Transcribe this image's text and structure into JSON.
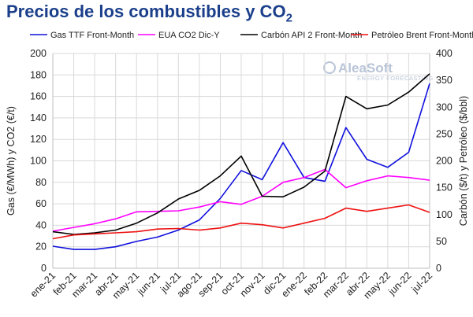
{
  "header": {
    "title_main": "Precios de los combustibles y CO",
    "title_sub": "2"
  },
  "logo": {
    "name": "AleaSoft",
    "tagline": "ENERGY FORECASTING"
  },
  "chart_data": {
    "type": "line",
    "title": "Precios de los combustibles y CO2",
    "categories": [
      "ene-21",
      "feb-21",
      "mar-21",
      "abr-21",
      "may-21",
      "jun-21",
      "jul-21",
      "ago-21",
      "sep-21",
      "oct-21",
      "nov-21",
      "dic-21",
      "ene-22",
      "feb-22",
      "mar-22",
      "abr-22",
      "may-22",
      "jun-22",
      "jul-22"
    ],
    "y_left": {
      "label": "Gas (€/MWh) y CO2 (€/t)",
      "min": 0,
      "max": 200,
      "ticks": [
        0,
        20,
        40,
        60,
        80,
        100,
        120,
        140,
        160,
        180,
        200
      ]
    },
    "y_right": {
      "label": "Carbón ($/t) y Petróleo ($/bbl)",
      "min": 0,
      "max": 400,
      "ticks": [
        0,
        50,
        100,
        150,
        200,
        250,
        300,
        350,
        400
      ]
    },
    "grid": true,
    "legend_position": "top",
    "series": [
      {
        "name": "Gas TTF Front-Month",
        "axis": "left",
        "color": "#1010dd",
        "values": [
          20.5,
          17.5,
          17.5,
          20,
          25,
          29,
          35.5,
          45,
          65,
          91,
          82.5,
          117,
          84.5,
          81,
          131,
          101.5,
          94,
          108,
          172
        ]
      },
      {
        "name": "EUA CO2 Dic-Y",
        "axis": "left",
        "color": "#ff00ff",
        "values": [
          34.5,
          38,
          41.5,
          46,
          52.5,
          53,
          53.5,
          57,
          62,
          59.5,
          67,
          80,
          84.5,
          92,
          75,
          81.5,
          86,
          84.5,
          82
        ]
      },
      {
        "name": "Carbón API 2 Front-Month",
        "axis": "right",
        "color": "#000000",
        "values": [
          68,
          63,
          66,
          71,
          84,
          103,
          129,
          145,
          172,
          209,
          134,
          133,
          151,
          181,
          320,
          297,
          304,
          328,
          362
        ]
      },
      {
        "name": "Petróleo Brent Front-Month",
        "axis": "right",
        "color": "#ee1111",
        "values": [
          55,
          62,
          64,
          66,
          68,
          73,
          74,
          71,
          75,
          84,
          81,
          75,
          84,
          93,
          112,
          106,
          112,
          118,
          104
        ]
      }
    ]
  }
}
